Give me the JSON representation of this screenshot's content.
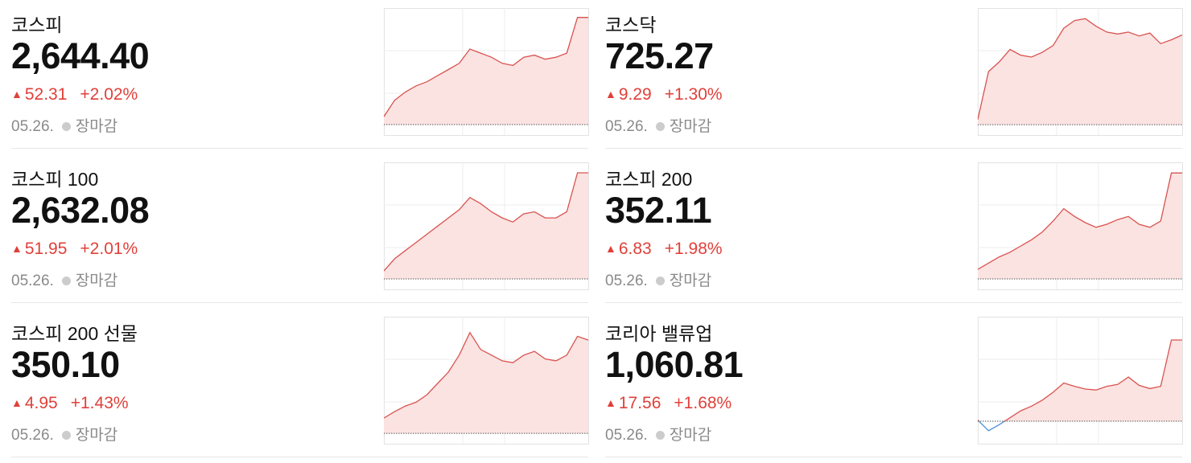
{
  "cards": [
    {
      "name": "코스피",
      "price": "2,644.40",
      "change": "52.31",
      "change_pct": "+2.02%",
      "date": "05.26.",
      "status": "장마감",
      "chart": {
        "type": "line",
        "baseline": 2592.09,
        "ylim": [
          2587,
          2649
        ],
        "values": [
          2596,
          2604,
          2608,
          2611,
          2613,
          2616,
          2619,
          2622,
          2629,
          2627,
          2625,
          2622,
          2621,
          2625,
          2626,
          2624,
          2625,
          2627,
          2644.4,
          2644.4
        ]
      }
    },
    {
      "name": "코스닥",
      "price": "725.27",
      "change": "9.29",
      "change_pct": "+1.30%",
      "date": "05.26.",
      "status": "장마감",
      "chart": {
        "type": "line",
        "baseline": 715.98,
        "ylim": [
          714.9,
          728.1
        ],
        "values": [
          716.5,
          721.5,
          722.5,
          723.8,
          723.2,
          723.0,
          723.5,
          724.2,
          726.0,
          726.8,
          727.0,
          726.2,
          725.6,
          725.4,
          725.6,
          725.2,
          725.5,
          724.4,
          724.8,
          725.3
        ]
      }
    },
    {
      "name": "코스피 100",
      "price": "2,632.08",
      "change": "51.95",
      "change_pct": "+2.01%",
      "date": "05.26.",
      "status": "장마감",
      "chart": {
        "type": "line",
        "baseline": 2580.13,
        "ylim": [
          2575,
          2637.2
        ],
        "values": [
          2584,
          2590,
          2594,
          2598,
          2602,
          2606,
          2610,
          2614,
          2620,
          2617,
          2613,
          2610,
          2608,
          2612,
          2613,
          2610,
          2610,
          2613,
          2632.1,
          2632.1
        ]
      }
    },
    {
      "name": "코스피 200",
      "price": "352.11",
      "change": "6.83",
      "change_pct": "+1.98%",
      "date": "05.26.",
      "status": "장마감",
      "chart": {
        "type": "line",
        "baseline": 345.28,
        "ylim": [
          344.61,
          352.78
        ],
        "values": [
          345.9,
          346.3,
          346.7,
          347.0,
          347.4,
          347.8,
          348.3,
          349.0,
          349.8,
          349.3,
          348.9,
          348.6,
          348.8,
          349.1,
          349.3,
          348.8,
          348.6,
          349.0,
          352.1,
          352.1
        ]
      }
    },
    {
      "name": "코스피 200 선물",
      "price": "350.10",
      "change": "4.95",
      "change_pct": "+1.43%",
      "date": "05.26.",
      "status": "장마감",
      "chart": {
        "type": "line",
        "baseline": 345.15,
        "ylim": [
          344.6,
          351.34
        ],
        "values": [
          345.96,
          346.3,
          346.6,
          346.8,
          347.2,
          347.8,
          348.4,
          349.3,
          350.5,
          349.6,
          349.3,
          349.0,
          348.9,
          349.3,
          349.5,
          349.1,
          349.0,
          349.3,
          350.3,
          350.1
        ]
      }
    },
    {
      "name": "코리아 밸류업",
      "price": "1,060.81",
      "change": "17.56",
      "change_pct": "+1.68%",
      "date": "05.26.",
      "status": "장마감",
      "chart": {
        "type": "line",
        "baseline": 1043.25,
        "ylim": [
          1038.38,
          1065.85
        ],
        "values": [
          1043.5,
          1041.2,
          1042.5,
          1044.0,
          1045.5,
          1046.5,
          1047.8,
          1049.5,
          1051.5,
          1050.8,
          1050.2,
          1050.0,
          1050.8,
          1051.2,
          1052.8,
          1051.0,
          1050.3,
          1050.8,
          1060.8,
          1060.8
        ]
      }
    }
  ]
}
